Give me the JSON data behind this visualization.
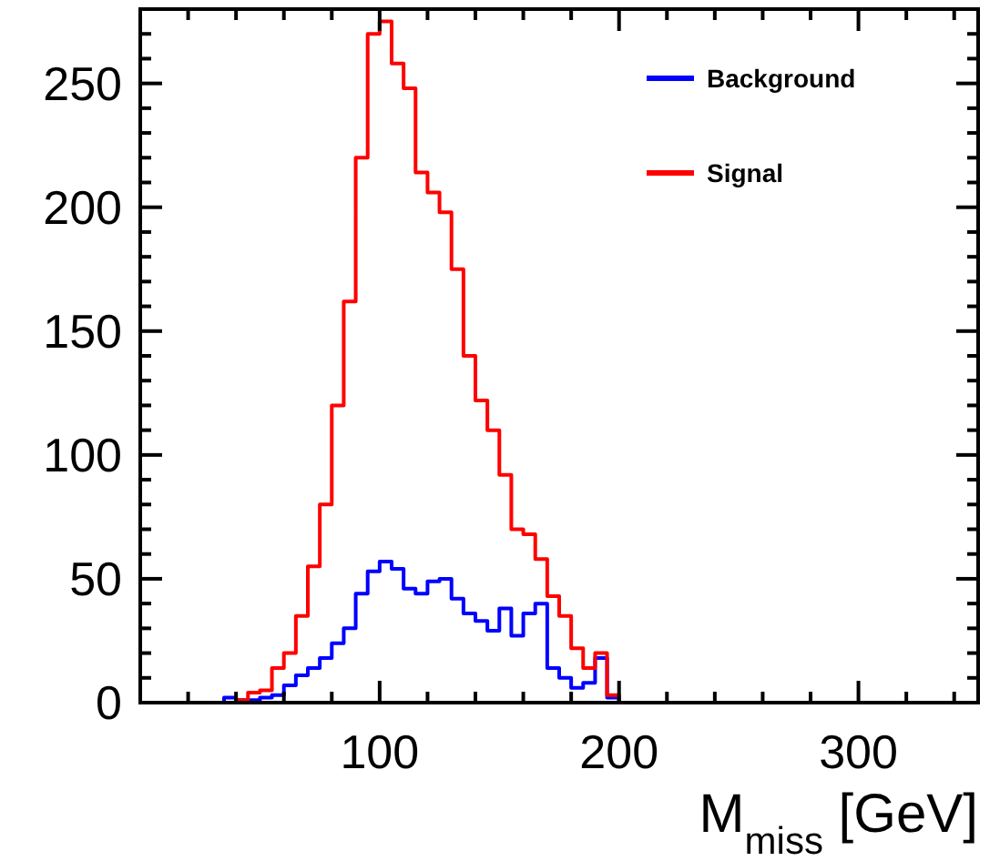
{
  "chart_data": {
    "type": "histogram",
    "xlabel": "M$_{miss}$ [GeV]",
    "bins": [
      0,
      5,
      10,
      15,
      20,
      25,
      30,
      35,
      40,
      45,
      50,
      55,
      60,
      65,
      70,
      75,
      80,
      85,
      90,
      95,
      100,
      105,
      110,
      115,
      120,
      125,
      130,
      135,
      140,
      145,
      150,
      155,
      160,
      165,
      170,
      175,
      180,
      185,
      190,
      195,
      200,
      205,
      210,
      215,
      220,
      225,
      230,
      235,
      240,
      245,
      250,
      255,
      260,
      265,
      270,
      275,
      280,
      285,
      290,
      295,
      300,
      305,
      310,
      315,
      320,
      325,
      330,
      335,
      340,
      345,
      350
    ],
    "series": [
      {
        "name": "Background",
        "color": "#0000ff",
        "values": [
          0,
          0,
          0,
          0,
          0,
          0,
          0,
          2,
          1,
          1,
          2,
          3,
          7,
          11,
          14,
          18,
          24,
          30,
          44,
          53,
          57,
          54,
          46,
          44,
          49,
          50,
          42,
          36,
          33,
          29,
          38,
          27,
          36,
          40,
          14,
          10,
          6,
          8,
          18,
          2,
          0,
          0,
          0,
          0,
          0,
          0,
          0,
          0,
          0,
          0,
          0,
          0,
          0,
          0,
          0,
          0,
          0,
          0,
          0,
          0,
          0,
          0,
          0,
          0,
          0,
          0,
          0,
          0,
          0,
          0
        ]
      },
      {
        "name": "Signal",
        "color": "#ff0000",
        "values": [
          0,
          0,
          0,
          0,
          0,
          0,
          0,
          0,
          1,
          4,
          5,
          14,
          20,
          35,
          55,
          80,
          120,
          162,
          220,
          270,
          275,
          258,
          248,
          214,
          206,
          198,
          175,
          140,
          122,
          110,
          92,
          70,
          68,
          58,
          43,
          35,
          22,
          14,
          20,
          3,
          0,
          0,
          0,
          0,
          0,
          0,
          0,
          0,
          0,
          0,
          0,
          0,
          0,
          0,
          0,
          0,
          0,
          0,
          0,
          0,
          0,
          0,
          0,
          0,
          0,
          0,
          0,
          0,
          0,
          0
        ]
      }
    ],
    "xlim": [
      0,
      350
    ],
    "xticks": [
      {
        "value": 20,
        "label": null
      },
      {
        "value": 40,
        "label": null
      },
      {
        "value": 60,
        "label": null
      },
      {
        "value": 80,
        "label": null
      },
      100,
      {
        "value": 120,
        "label": null
      },
      {
        "value": 140,
        "label": null
      },
      {
        "value": 160,
        "label": null
      },
      {
        "value": 180,
        "label": null
      },
      200,
      {
        "value": 220,
        "label": null
      },
      {
        "value": 240,
        "label": null
      },
      {
        "value": 260,
        "label": null
      },
      {
        "value": 280,
        "label": null
      },
      300,
      {
        "value": 320,
        "label": null
      },
      {
        "value": 340,
        "label": null
      }
    ],
    "ylim": [
      0,
      280
    ],
    "yticks": [
      0,
      {
        "value": 10,
        "label": null
      },
      {
        "value": 20,
        "label": null
      },
      {
        "value": 30,
        "label": null
      },
      {
        "value": 40,
        "label": null
      },
      50,
      {
        "value": 60,
        "label": null
      },
      {
        "value": 70,
        "label": null
      },
      {
        "value": 80,
        "label": null
      },
      {
        "value": 90,
        "label": null
      },
      100,
      {
        "value": 110,
        "label": null
      },
      {
        "value": 120,
        "label": null
      },
      {
        "value": 130,
        "label": null
      },
      {
        "value": 140,
        "label": null
      },
      150,
      {
        "value": 160,
        "label": null
      },
      {
        "value": 170,
        "label": null
      },
      {
        "value": 180,
        "label": null
      },
      {
        "value": 190,
        "label": null
      },
      200,
      {
        "value": 210,
        "label": null
      },
      {
        "value": 220,
        "label": null
      },
      {
        "value": 230,
        "label": null
      },
      {
        "value": 240,
        "label": null
      },
      250,
      {
        "value": 260,
        "label": null
      },
      {
        "value": 270,
        "label": null
      }
    ],
    "legend": "top right",
    "grid": false
  }
}
